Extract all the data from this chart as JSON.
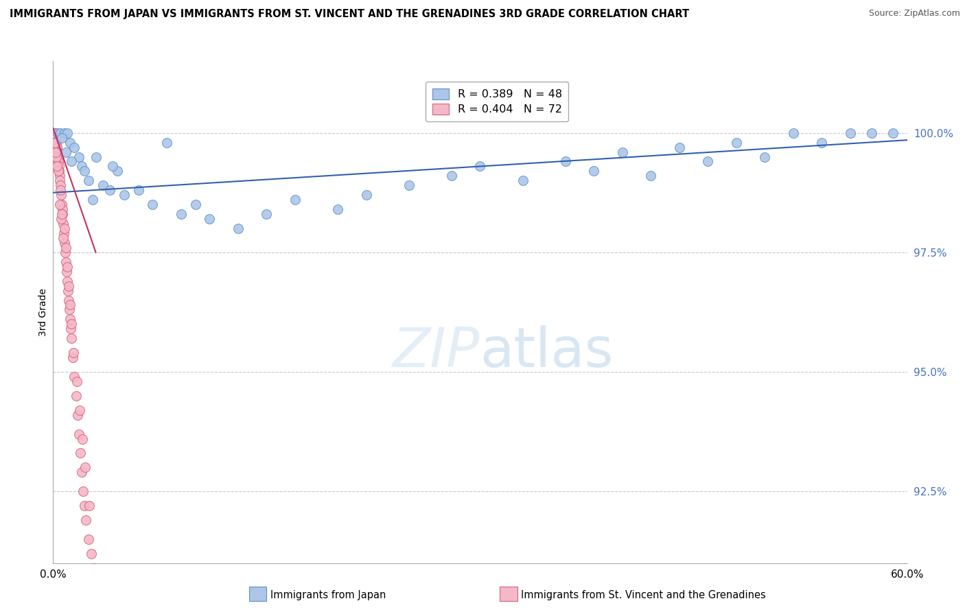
{
  "title": "IMMIGRANTS FROM JAPAN VS IMMIGRANTS FROM ST. VINCENT AND THE GRENADINES 3RD GRADE CORRELATION CHART",
  "source": "Source: ZipAtlas.com",
  "ylabel": "3rd Grade",
  "legend_japan_r": "0.389",
  "legend_japan_n": "48",
  "legend_svg_r": "0.404",
  "legend_svg_n": "72",
  "legend_label_japan": "Immigrants from Japan",
  "legend_label_svg": "Immigrants from St. Vincent and the Grenadines",
  "japan_color": "#adc6e8",
  "svg_color": "#f5b8c8",
  "japan_edge": "#5b8fc7",
  "svg_edge": "#d4607a",
  "trendline_color": "#3060b0",
  "trendline_svg_color": "#c03060",
  "yticks": [
    92.5,
    95.0,
    97.5,
    100.0
  ],
  "xmin": 0.0,
  "xmax": 60.0,
  "ymin": 91.0,
  "ymax": 101.5,
  "japan_x": [
    0.3,
    0.5,
    0.8,
    1.0,
    1.2,
    1.5,
    1.8,
    2.0,
    2.2,
    2.5,
    3.0,
    3.5,
    4.0,
    4.5,
    5.0,
    6.0,
    7.0,
    8.0,
    9.0,
    10.0,
    11.0,
    13.0,
    15.0,
    17.0,
    20.0,
    22.0,
    25.0,
    28.0,
    30.0,
    33.0,
    36.0,
    38.0,
    40.0,
    42.0,
    44.0,
    46.0,
    48.0,
    50.0,
    52.0,
    54.0,
    56.0,
    57.5,
    59.0,
    0.6,
    0.9,
    1.3,
    2.8,
    4.2
  ],
  "japan_y": [
    100.0,
    100.0,
    100.0,
    100.0,
    99.8,
    99.7,
    99.5,
    99.3,
    99.2,
    99.0,
    99.5,
    98.9,
    98.8,
    99.2,
    98.7,
    98.8,
    98.5,
    99.8,
    98.3,
    98.5,
    98.2,
    98.0,
    98.3,
    98.6,
    98.4,
    98.7,
    98.9,
    99.1,
    99.3,
    99.0,
    99.4,
    99.2,
    99.6,
    99.1,
    99.7,
    99.4,
    99.8,
    99.5,
    100.0,
    99.8,
    100.0,
    100.0,
    100.0,
    99.9,
    99.6,
    99.4,
    98.6,
    99.3
  ],
  "svg_x": [
    0.05,
    0.08,
    0.1,
    0.12,
    0.15,
    0.18,
    0.2,
    0.22,
    0.25,
    0.28,
    0.3,
    0.32,
    0.35,
    0.38,
    0.4,
    0.42,
    0.45,
    0.48,
    0.5,
    0.55,
    0.6,
    0.65,
    0.7,
    0.75,
    0.8,
    0.85,
    0.9,
    0.95,
    1.0,
    1.05,
    1.1,
    1.15,
    1.2,
    1.25,
    1.3,
    1.4,
    1.5,
    1.6,
    1.7,
    1.8,
    1.9,
    2.0,
    2.1,
    2.2,
    2.3,
    2.5,
    2.7,
    2.9,
    0.06,
    0.14,
    0.24,
    0.36,
    0.52,
    0.68,
    0.78,
    0.88,
    0.98,
    1.08,
    1.18,
    1.28,
    1.45,
    1.65,
    1.85,
    2.05,
    2.25,
    2.55,
    0.16,
    0.26,
    0.46,
    0.58,
    0.72,
    0.62
  ],
  "svg_y": [
    100.0,
    100.0,
    100.0,
    100.0,
    100.0,
    99.9,
    99.8,
    99.8,
    99.7,
    99.7,
    99.6,
    99.5,
    99.5,
    99.4,
    99.3,
    99.2,
    99.1,
    99.0,
    98.9,
    98.7,
    98.5,
    98.3,
    98.1,
    97.9,
    97.7,
    97.5,
    97.3,
    97.1,
    96.9,
    96.7,
    96.5,
    96.3,
    96.1,
    95.9,
    95.7,
    95.3,
    94.9,
    94.5,
    94.1,
    93.7,
    93.3,
    92.9,
    92.5,
    92.2,
    91.9,
    91.5,
    91.2,
    90.9,
    100.0,
    99.8,
    99.5,
    99.2,
    98.8,
    98.4,
    98.0,
    97.6,
    97.2,
    96.8,
    96.4,
    96.0,
    95.4,
    94.8,
    94.2,
    93.6,
    93.0,
    92.2,
    99.6,
    99.3,
    98.5,
    98.2,
    97.8,
    98.3
  ]
}
